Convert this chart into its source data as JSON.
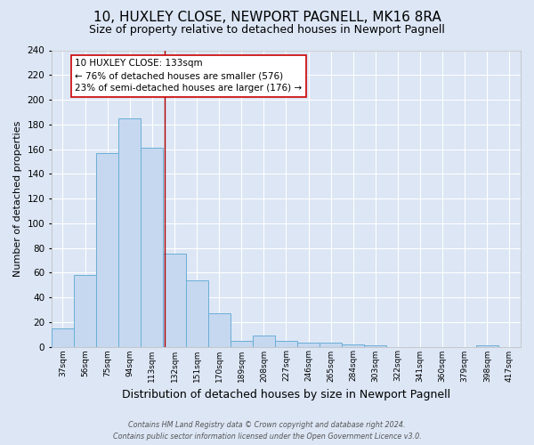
{
  "title": "10, HUXLEY CLOSE, NEWPORT PAGNELL, MK16 8RA",
  "subtitle": "Size of property relative to detached houses in Newport Pagnell",
  "xlabel": "Distribution of detached houses by size in Newport Pagnell",
  "ylabel": "Number of detached properties",
  "categories": [
    "37sqm",
    "56sqm",
    "75sqm",
    "94sqm",
    "113sqm",
    "132sqm",
    "151sqm",
    "170sqm",
    "189sqm",
    "208sqm",
    "227sqm",
    "246sqm",
    "265sqm",
    "284sqm",
    "303sqm",
    "322sqm",
    "341sqm",
    "360sqm",
    "379sqm",
    "398sqm",
    "417sqm"
  ],
  "bin_edges": [
    37,
    56,
    75,
    94,
    113,
    132,
    151,
    170,
    189,
    208,
    227,
    246,
    265,
    284,
    303,
    322,
    341,
    360,
    379,
    398,
    417
  ],
  "bin_width": 19,
  "values": [
    15,
    58,
    157,
    185,
    161,
    75,
    54,
    27,
    5,
    9,
    5,
    3,
    3,
    2,
    1,
    0,
    0,
    0,
    0,
    1
  ],
  "bar_color": "#c5d8f0",
  "bar_edge_color": "#6baed6",
  "vline_x": 133,
  "vline_color": "#aa0000",
  "ylim": [
    0,
    240
  ],
  "yticks": [
    0,
    20,
    40,
    60,
    80,
    100,
    120,
    140,
    160,
    180,
    200,
    220,
    240
  ],
  "annotation_title": "10 HUXLEY CLOSE: 133sqm",
  "annotation_line1": "← 76% of detached houses are smaller (576)",
  "annotation_line2": "23% of semi-detached houses are larger (176) →",
  "annotation_box_color": "#ffffff",
  "annotation_box_edge": "#cc0000",
  "background_color": "#dce6f5",
  "plot_bg_color": "#dce6f5",
  "grid_color": "#ffffff",
  "title_fontsize": 11,
  "subtitle_fontsize": 9,
  "xlabel_fontsize": 9,
  "ylabel_fontsize": 8,
  "footer1": "Contains HM Land Registry data © Crown copyright and database right 2024.",
  "footer2": "Contains public sector information licensed under the Open Government Licence v3.0."
}
